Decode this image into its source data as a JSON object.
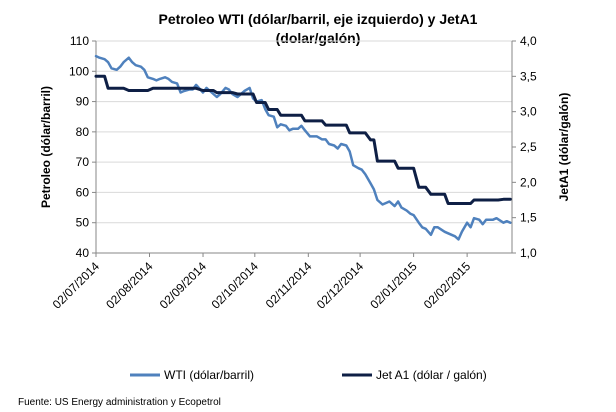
{
  "chart_data": {
    "type": "line",
    "title_line1": "Petroleo WTI (dólar/barril, eje izquierdo)  y JetA1",
    "title_line2": "(dolar/galón)",
    "ylabel_left": "Petroleo (dólar/barril)",
    "ylabel_right": "JetA1 (dólar/galón)",
    "ylim_left": [
      40,
      110
    ],
    "ylim_right": [
      1.0,
      4.0
    ],
    "yticks_left": [
      "40",
      "50",
      "60",
      "70",
      "80",
      "90",
      "100",
      "110"
    ],
    "yticks_right": [
      "1,0",
      "1,5",
      "2,0",
      "2,5",
      "3,0",
      "3,5",
      "4,0"
    ],
    "xlim": [
      "2014-07-02",
      "2015-02-28"
    ],
    "xticks": [
      {
        "date": "2014-07-02",
        "label": "02/07/2014"
      },
      {
        "date": "2014-08-02",
        "label": "02/08/2014"
      },
      {
        "date": "2014-09-02",
        "label": "02/09/2014"
      },
      {
        "date": "2014-10-02",
        "label": "02/10/2014"
      },
      {
        "date": "2014-11-02",
        "label": "02/11/2014"
      },
      {
        "date": "2014-12-02",
        "label": "02/12/2014"
      },
      {
        "date": "2015-01-02",
        "label": "02/01/2015"
      },
      {
        "date": "2015-02-02",
        "label": "02/02/2015"
      }
    ],
    "grid": "horizontal",
    "legend_position": "bottom",
    "series": [
      {
        "name": "WTI (dólar/barril)",
        "axis": "left",
        "color": "#4f81bd",
        "points": [
          [
            "2014-07-02",
            105
          ],
          [
            "2014-07-04",
            104.5
          ],
          [
            "2014-07-07",
            104
          ],
          [
            "2014-07-09",
            103
          ],
          [
            "2014-07-11",
            101
          ],
          [
            "2014-07-14",
            100.5
          ],
          [
            "2014-07-16",
            101.5
          ],
          [
            "2014-07-18",
            103
          ],
          [
            "2014-07-21",
            104.5
          ],
          [
            "2014-07-23",
            103
          ],
          [
            "2014-07-25",
            102
          ],
          [
            "2014-07-28",
            101.5
          ],
          [
            "2014-07-30",
            100.5
          ],
          [
            "2014-08-01",
            98
          ],
          [
            "2014-08-04",
            97.5
          ],
          [
            "2014-08-06",
            97
          ],
          [
            "2014-08-08",
            97.5
          ],
          [
            "2014-08-11",
            98
          ],
          [
            "2014-08-13",
            97.5
          ],
          [
            "2014-08-15",
            96.5
          ],
          [
            "2014-08-18",
            96
          ],
          [
            "2014-08-20",
            93
          ],
          [
            "2014-08-22",
            93.5
          ],
          [
            "2014-08-25",
            94
          ],
          [
            "2014-08-27",
            94
          ],
          [
            "2014-08-29",
            95.5
          ],
          [
            "2014-09-02",
            93
          ],
          [
            "2014-09-04",
            94.5
          ],
          [
            "2014-09-08",
            92.5
          ],
          [
            "2014-09-10",
            91.5
          ],
          [
            "2014-09-12",
            92.5
          ],
          [
            "2014-09-15",
            94.5
          ],
          [
            "2014-09-17",
            94
          ],
          [
            "2014-09-19",
            92.5
          ],
          [
            "2014-09-22",
            91.5
          ],
          [
            "2014-09-24",
            92.5
          ],
          [
            "2014-09-26",
            93.5
          ],
          [
            "2014-09-29",
            94.5
          ],
          [
            "2014-10-01",
            91
          ],
          [
            "2014-10-03",
            90
          ],
          [
            "2014-10-06",
            90.5
          ],
          [
            "2014-10-08",
            87.5
          ],
          [
            "2014-10-10",
            85.5
          ],
          [
            "2014-10-13",
            85
          ],
          [
            "2014-10-15",
            81.5
          ],
          [
            "2014-10-17",
            82.5
          ],
          [
            "2014-10-20",
            82
          ],
          [
            "2014-10-22",
            80.5
          ],
          [
            "2014-10-24",
            81
          ],
          [
            "2014-10-27",
            81
          ],
          [
            "2014-10-29",
            82
          ],
          [
            "2014-10-31",
            80.5
          ],
          [
            "2014-11-03",
            78.5
          ],
          [
            "2014-11-05",
            78.5
          ],
          [
            "2014-11-07",
            78.5
          ],
          [
            "2014-11-10",
            77.5
          ],
          [
            "2014-11-12",
            77.5
          ],
          [
            "2014-11-14",
            76
          ],
          [
            "2014-11-17",
            75.5
          ],
          [
            "2014-11-19",
            74.5
          ],
          [
            "2014-11-21",
            76
          ],
          [
            "2014-11-24",
            75.5
          ],
          [
            "2014-11-26",
            73.5
          ],
          [
            "2014-11-28",
            69
          ],
          [
            "2014-12-01",
            68
          ],
          [
            "2014-12-03",
            67.5
          ],
          [
            "2014-12-05",
            66
          ],
          [
            "2014-12-08",
            63
          ],
          [
            "2014-12-10",
            61
          ],
          [
            "2014-12-12",
            57.5
          ],
          [
            "2014-12-15",
            56
          ],
          [
            "2014-12-17",
            56.5
          ],
          [
            "2014-12-19",
            57
          ],
          [
            "2014-12-22",
            55.5
          ],
          [
            "2014-12-24",
            57
          ],
          [
            "2014-12-26",
            55
          ],
          [
            "2014-12-29",
            54
          ],
          [
            "2014-12-31",
            53
          ],
          [
            "2015-01-02",
            52.5
          ],
          [
            "2015-01-05",
            50
          ],
          [
            "2015-01-07",
            48.5
          ],
          [
            "2015-01-09",
            48
          ],
          [
            "2015-01-12",
            46
          ],
          [
            "2015-01-14",
            48.5
          ],
          [
            "2015-01-16",
            48.5
          ],
          [
            "2015-01-20",
            47
          ],
          [
            "2015-01-22",
            46.5
          ],
          [
            "2015-01-26",
            45.5
          ],
          [
            "2015-01-28",
            44.5
          ],
          [
            "2015-01-30",
            47
          ],
          [
            "2015-02-02",
            50
          ],
          [
            "2015-02-04",
            48.5
          ],
          [
            "2015-02-06",
            51.5
          ],
          [
            "2015-02-09",
            51
          ],
          [
            "2015-02-11",
            49.5
          ],
          [
            "2015-02-13",
            51
          ],
          [
            "2015-02-17",
            51
          ],
          [
            "2015-02-19",
            51.5
          ],
          [
            "2015-02-23",
            50
          ],
          [
            "2015-02-25",
            50.5
          ],
          [
            "2015-02-27",
            50
          ]
        ]
      },
      {
        "name": "Jet A1 (dólar / galón)",
        "axis": "right",
        "color": "#0e1f45",
        "points": [
          [
            "2014-07-02",
            3.5
          ],
          [
            "2014-07-07",
            3.5
          ],
          [
            "2014-07-09",
            3.33
          ],
          [
            "2014-07-18",
            3.33
          ],
          [
            "2014-07-21",
            3.3
          ],
          [
            "2014-08-01",
            3.3
          ],
          [
            "2014-08-04",
            3.33
          ],
          [
            "2014-08-29",
            3.33
          ],
          [
            "2014-09-02",
            3.3
          ],
          [
            "2014-09-08",
            3.3
          ],
          [
            "2014-09-10",
            3.27
          ],
          [
            "2014-09-19",
            3.27
          ],
          [
            "2014-09-22",
            3.25
          ],
          [
            "2014-10-01",
            3.25
          ],
          [
            "2014-10-03",
            3.13
          ],
          [
            "2014-10-08",
            3.13
          ],
          [
            "2014-10-10",
            3.03
          ],
          [
            "2014-10-15",
            3.03
          ],
          [
            "2014-10-17",
            2.95
          ],
          [
            "2014-10-29",
            2.95
          ],
          [
            "2014-10-31",
            2.87
          ],
          [
            "2014-11-10",
            2.87
          ],
          [
            "2014-11-12",
            2.81
          ],
          [
            "2014-11-24",
            2.81
          ],
          [
            "2014-11-26",
            2.7
          ],
          [
            "2014-12-05",
            2.7
          ],
          [
            "2014-12-08",
            2.6
          ],
          [
            "2014-12-10",
            2.6
          ],
          [
            "2014-12-12",
            2.3
          ],
          [
            "2014-12-22",
            2.3
          ],
          [
            "2014-12-24",
            2.2
          ],
          [
            "2015-01-02",
            2.2
          ],
          [
            "2015-01-05",
            1.93
          ],
          [
            "2015-01-09",
            1.93
          ],
          [
            "2015-01-12",
            1.83
          ],
          [
            "2015-01-20",
            1.83
          ],
          [
            "2015-01-22",
            1.7
          ],
          [
            "2015-02-04",
            1.7
          ],
          [
            "2015-02-06",
            1.75
          ],
          [
            "2015-02-20",
            1.75
          ],
          [
            "2015-02-23",
            1.76
          ],
          [
            "2015-02-27",
            1.76
          ]
        ]
      }
    ]
  },
  "source_text": "Fuente: US Energy administration y Ecopetrol"
}
